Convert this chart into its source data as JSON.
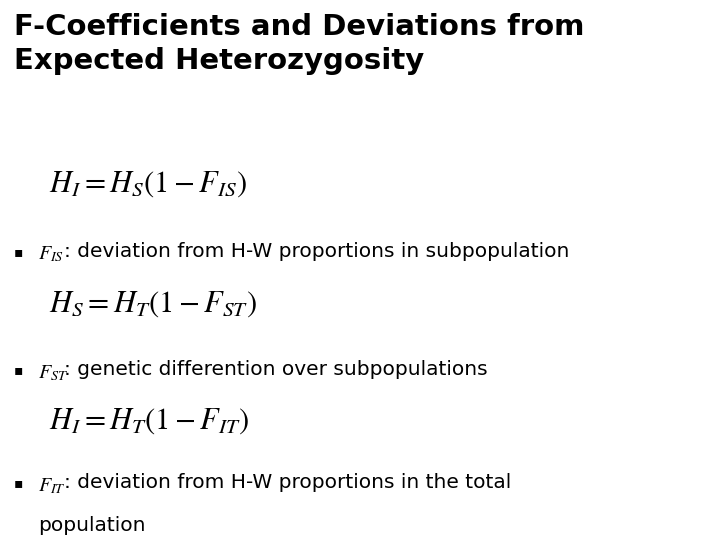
{
  "title_line1": "F-Coefficients and Deviations from",
  "title_line2": "Expected Heterozygosity",
  "formula1": "$H_I = H_S(1 - F_{IS})$",
  "bullet1_math": "$F_{IS}$",
  "bullet1_text": ": deviation from H-W proportions in subpopulation",
  "formula2": "$H_S = H_T(1 - F_{ST})$",
  "bullet2_math": "$F_{ST}$",
  "bullet2_text": ": genetic differention over subpopulations",
  "formula3": "$H_I = H_T(1 - F_{IT})$",
  "bullet3_math": "$F_{IT}$",
  "bullet3_text": ": deviation from H-W proportions in the total",
  "bullet3_text2": "population",
  "bg_color": "#ffffff",
  "text_color": "#000000",
  "title_fontsize": 21,
  "formula_fontsize": 22,
  "bullet_fontsize": 14.5,
  "bullet_math_fontsize": 14.5
}
